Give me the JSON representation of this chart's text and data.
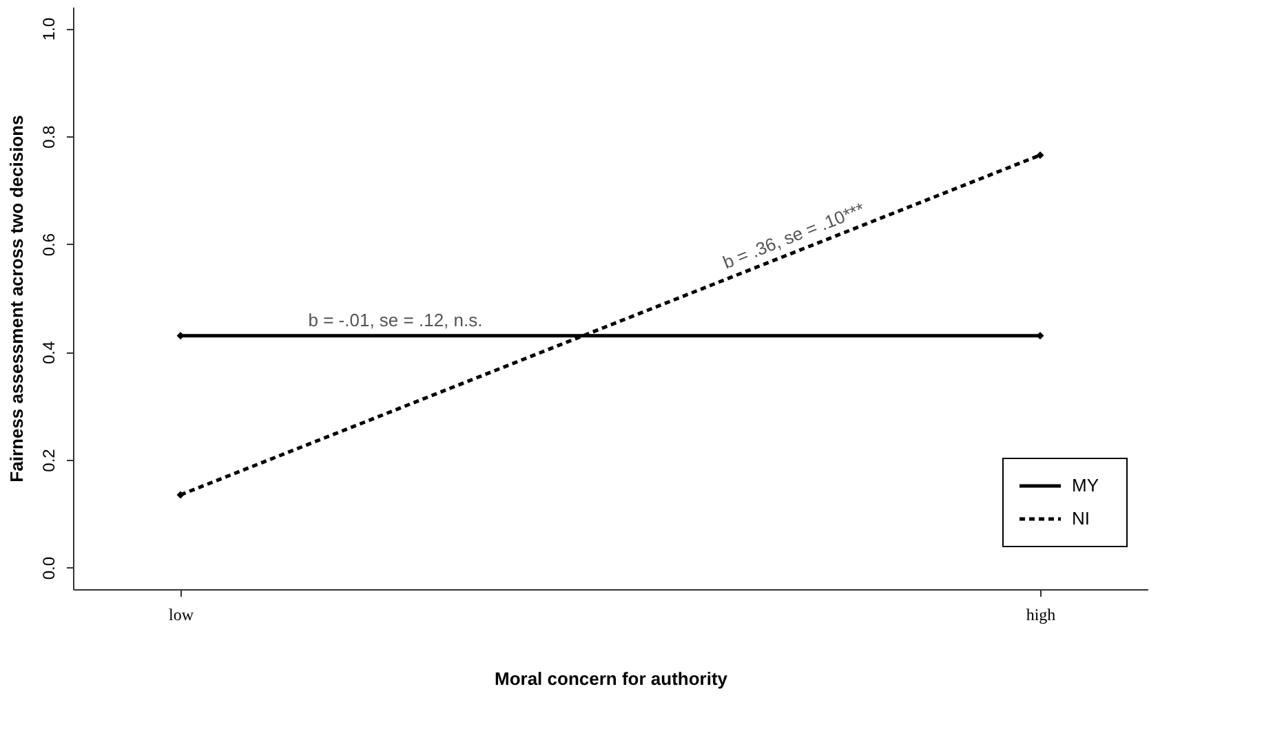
{
  "chart_data": {
    "type": "line",
    "xlabel": "Moral concern for authority",
    "ylabel": "Fairness assessment across two decisions",
    "categories": [
      "low",
      "high"
    ],
    "series": [
      {
        "name": "MY",
        "color": "#000000",
        "values": [
          0.43,
          0.43
        ],
        "line_style": "solid"
      },
      {
        "name": "NI",
        "color": "#000000",
        "values": [
          0.135,
          0.765
        ],
        "line_style": "dashed"
      }
    ],
    "ylim": [
      -0.04,
      1.04
    ],
    "yticks": [
      {
        "value": 0,
        "label": "0.0"
      },
      {
        "value": 0.2,
        "label": "0.2"
      },
      {
        "value": 0.4,
        "label": "0.4"
      },
      {
        "value": 0.6,
        "label": "0.6"
      },
      {
        "value": 0.8,
        "label": "0.8"
      },
      {
        "value": 1,
        "label": "1.0"
      }
    ],
    "annotations": [
      "b = -.01, se = .12, n.s.",
      "b = .36, se = .10***"
    ],
    "legend": "bottom right",
    "marker": "diamond",
    "grid": false
  }
}
